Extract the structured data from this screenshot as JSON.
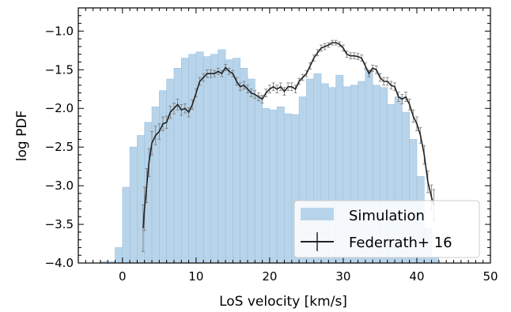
{
  "chart_data": {
    "type": "bar",
    "xlabel": "LoS velocity [km/s]",
    "ylabel": "log PDF",
    "xlim": [
      -6,
      50
    ],
    "ylim": [
      -4.0,
      -0.7
    ],
    "xticks": [
      0,
      10,
      20,
      30,
      40,
      50
    ],
    "xtick_labels": [
      "0",
      "10",
      "20",
      "30",
      "40",
      "50"
    ],
    "yticks": [
      -4.0,
      -3.5,
      -3.0,
      -2.5,
      -2.0,
      -1.5,
      -1.0
    ],
    "ytick_labels": [
      "−4.0",
      "−3.5",
      "−3.0",
      "−2.5",
      "−2.0",
      "−1.5",
      "−1.0"
    ],
    "grid": false,
    "legend_position": "lower-right",
    "colors": {
      "bars": "#b8d4ea",
      "bar_edge": "#9cc0df",
      "line": "#222222",
      "errbar": "#777777"
    },
    "series": [
      {
        "name": "Simulation",
        "kind": "histogram",
        "bin_width": 1,
        "bin_left": [
          -3,
          -2,
          -1,
          0,
          1,
          2,
          3,
          4,
          5,
          6,
          7,
          8,
          9,
          10,
          11,
          12,
          13,
          14,
          15,
          16,
          17,
          18,
          19,
          20,
          21,
          22,
          23,
          24,
          25,
          26,
          27,
          28,
          29,
          30,
          31,
          32,
          33,
          34,
          35,
          36,
          37,
          38,
          39,
          40,
          41,
          42
        ],
        "values": [
          -3.98,
          -3.98,
          -3.8,
          -3.02,
          -2.5,
          -2.35,
          -2.18,
          -1.98,
          -1.77,
          -1.62,
          -1.48,
          -1.35,
          -1.3,
          -1.27,
          -1.33,
          -1.3,
          -1.24,
          -1.37,
          -1.35,
          -1.48,
          -1.62,
          -1.83,
          -2.0,
          -2.02,
          -1.98,
          -2.07,
          -2.08,
          -1.85,
          -1.62,
          -1.55,
          -1.68,
          -1.73,
          -1.57,
          -1.72,
          -1.7,
          -1.65,
          -1.5,
          -1.7,
          -1.73,
          -1.95,
          -1.85,
          -2.05,
          -2.4,
          -2.88,
          -3.55,
          -3.92
        ]
      },
      {
        "name": "Federrath+ 16",
        "kind": "line-errorbar",
        "x": [
          2.8,
          3.0,
          3.3,
          3.6,
          4.0,
          4.5,
          5.0,
          5.5,
          6.0,
          6.5,
          7.0,
          7.5,
          8.0,
          8.5,
          9.0,
          9.5,
          10.0,
          10.5,
          11.0,
          11.5,
          12.0,
          12.5,
          13.0,
          13.5,
          14.0,
          14.5,
          15.0,
          15.5,
          16.0,
          16.5,
          17.0,
          17.5,
          18.0,
          18.5,
          19.0,
          19.5,
          20.0,
          20.5,
          21.0,
          21.5,
          22.0,
          22.5,
          23.0,
          23.5,
          24.0,
          24.5,
          25.0,
          25.5,
          26.0,
          26.5,
          27.0,
          27.5,
          28.0,
          28.5,
          29.0,
          29.5,
          30.0,
          30.5,
          31.0,
          31.5,
          32.0,
          32.5,
          33.0,
          33.5,
          34.0,
          34.5,
          35.0,
          35.5,
          36.0,
          36.5,
          37.0,
          37.5,
          38.0,
          38.5,
          39.0,
          39.5,
          40.0,
          40.5,
          41.0,
          41.5,
          42.0,
          42.3
        ],
        "y": [
          -3.55,
          -3.3,
          -3.0,
          -2.7,
          -2.45,
          -2.35,
          -2.3,
          -2.2,
          -2.18,
          -2.05,
          -2.0,
          -1.95,
          -2.02,
          -2.0,
          -2.05,
          -1.95,
          -1.8,
          -1.65,
          -1.6,
          -1.55,
          -1.55,
          -1.55,
          -1.52,
          -1.55,
          -1.47,
          -1.52,
          -1.55,
          -1.65,
          -1.72,
          -1.7,
          -1.75,
          -1.8,
          -1.82,
          -1.85,
          -1.88,
          -1.8,
          -1.75,
          -1.72,
          -1.75,
          -1.72,
          -1.78,
          -1.72,
          -1.72,
          -1.75,
          -1.65,
          -1.6,
          -1.55,
          -1.45,
          -1.35,
          -1.28,
          -1.22,
          -1.2,
          -1.18,
          -1.15,
          -1.15,
          -1.17,
          -1.22,
          -1.3,
          -1.32,
          -1.32,
          -1.33,
          -1.35,
          -1.45,
          -1.55,
          -1.48,
          -1.5,
          -1.6,
          -1.65,
          -1.65,
          -1.7,
          -1.72,
          -1.85,
          -1.88,
          -1.85,
          -1.95,
          -2.1,
          -2.2,
          -2.35,
          -2.6,
          -2.95,
          -3.15,
          -3.25
        ],
        "yerr": [
          0.3,
          0.28,
          0.22,
          0.18,
          0.15,
          0.12,
          0.1,
          0.09,
          0.08,
          0.08,
          0.07,
          0.07,
          0.07,
          0.06,
          0.06,
          0.06,
          0.05,
          0.05,
          0.05,
          0.05,
          0.05,
          0.04,
          0.04,
          0.04,
          0.04,
          0.04,
          0.04,
          0.05,
          0.05,
          0.05,
          0.05,
          0.05,
          0.05,
          0.05,
          0.05,
          0.05,
          0.05,
          0.05,
          0.05,
          0.05,
          0.05,
          0.05,
          0.05,
          0.05,
          0.04,
          0.04,
          0.04,
          0.04,
          0.04,
          0.04,
          0.04,
          0.04,
          0.03,
          0.03,
          0.03,
          0.03,
          0.04,
          0.04,
          0.04,
          0.04,
          0.04,
          0.04,
          0.04,
          0.04,
          0.04,
          0.05,
          0.05,
          0.05,
          0.05,
          0.05,
          0.05,
          0.06,
          0.06,
          0.06,
          0.07,
          0.08,
          0.09,
          0.1,
          0.12,
          0.14,
          0.16,
          0.2
        ]
      }
    ]
  }
}
